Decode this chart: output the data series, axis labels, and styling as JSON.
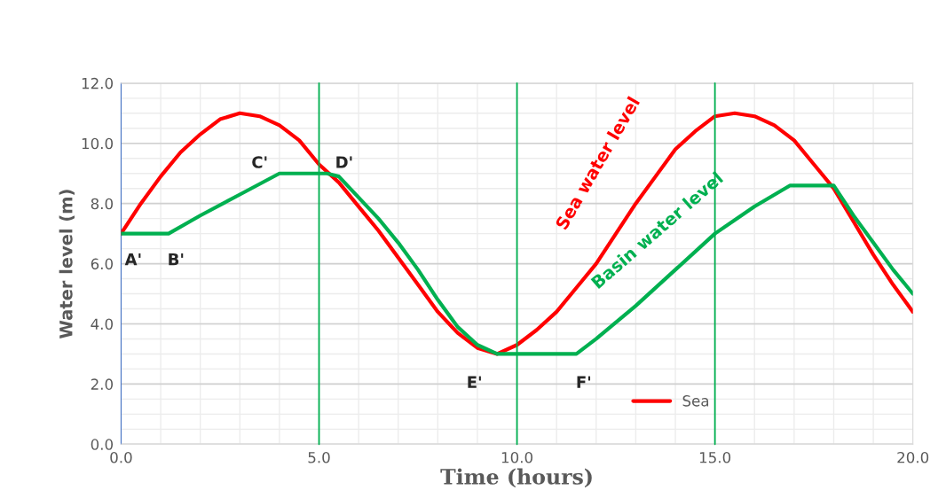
{
  "chart_data": {
    "type": "line",
    "xlabel": "Time (hours)",
    "ylabel": "Water level (m)",
    "xlim": [
      0,
      20
    ],
    "ylim": [
      0,
      12
    ],
    "xticks": [
      {
        "value": 0,
        "label": "0.0"
      },
      {
        "value": 5,
        "label": "5.0"
      },
      {
        "value": 10,
        "label": "10.0"
      },
      {
        "value": 15,
        "label": "15.0"
      },
      {
        "value": 20,
        "label": "20.0"
      }
    ],
    "yticks": [
      {
        "value": 0,
        "label": "0.0"
      },
      {
        "value": 2,
        "label": "2.0"
      },
      {
        "value": 4,
        "label": "4.0"
      },
      {
        "value": 6,
        "label": "6.0"
      },
      {
        "value": 8,
        "label": "8.0"
      },
      {
        "value": 10,
        "label": "10.0"
      },
      {
        "value": 12,
        "label": "12.0"
      }
    ],
    "grid": true,
    "legend": "bottom right",
    "line_style": "solid",
    "marker": "none",
    "series": [
      {
        "name": "Sea",
        "color": "#ff0000",
        "x": [
          0,
          0.5,
          1,
          1.5,
          2,
          2.5,
          3,
          3.5,
          4,
          4.5,
          5,
          5.5,
          6,
          6.5,
          7,
          7.5,
          8,
          8.5,
          9,
          9.5,
          10,
          10.5,
          11,
          11.5,
          12,
          12.5,
          13,
          13.5,
          14,
          14.5,
          15,
          15.5,
          16,
          16.5,
          17,
          17.5,
          18,
          18.5,
          19,
          19.5,
          20
        ],
        "values": [
          7.0,
          8.0,
          8.9,
          9.7,
          10.3,
          10.8,
          11.0,
          10.9,
          10.6,
          10.1,
          9.3,
          8.7,
          7.9,
          7.1,
          6.2,
          5.3,
          4.4,
          3.7,
          3.2,
          3.0,
          3.3,
          3.8,
          4.4,
          5.2,
          6.0,
          7.0,
          8.0,
          8.9,
          9.8,
          10.4,
          10.9,
          11.0,
          10.9,
          10.6,
          10.1,
          9.3,
          8.5,
          7.4,
          6.3,
          5.3,
          4.4
        ]
      },
      {
        "color": "#00b050",
        "x": [
          0,
          1.2,
          2,
          3,
          4,
          5.2,
          5.5,
          6,
          6.5,
          7,
          7.5,
          8,
          8.5,
          9,
          9.5,
          11.5,
          12,
          13,
          14,
          15,
          16,
          16.9,
          18,
          18.5,
          19,
          19.5,
          20
        ],
        "values": [
          7.0,
          7.0,
          7.6,
          8.3,
          9.0,
          9.0,
          8.9,
          8.2,
          7.5,
          6.7,
          5.8,
          4.8,
          3.9,
          3.3,
          3.0,
          3.0,
          3.5,
          4.6,
          5.8,
          7.0,
          7.9,
          8.6,
          8.6,
          7.6,
          6.7,
          5.8,
          5.0
        ]
      }
    ],
    "ref_lines": [
      {
        "axis": "x",
        "value": 5,
        "color": "#00b050"
      },
      {
        "axis": "x",
        "value": 10,
        "color": "#00b050"
      },
      {
        "axis": "x",
        "value": 15,
        "color": "#00b050"
      }
    ],
    "annotations": [
      {
        "text": "A'",
        "x": 0,
        "y": 7.0
      },
      {
        "text": "B'",
        "x": 1.2,
        "y": 7.0
      },
      {
        "text": "C'",
        "x": 4,
        "y": 9.0
      },
      {
        "text": "D'",
        "x": 5.2,
        "y": 9.0
      },
      {
        "text": "E'",
        "x": 9.3,
        "y": 3.0
      },
      {
        "text": "F'",
        "x": 11.5,
        "y": 3.0
      },
      "Sea water level",
      "Basin water level"
    ]
  }
}
